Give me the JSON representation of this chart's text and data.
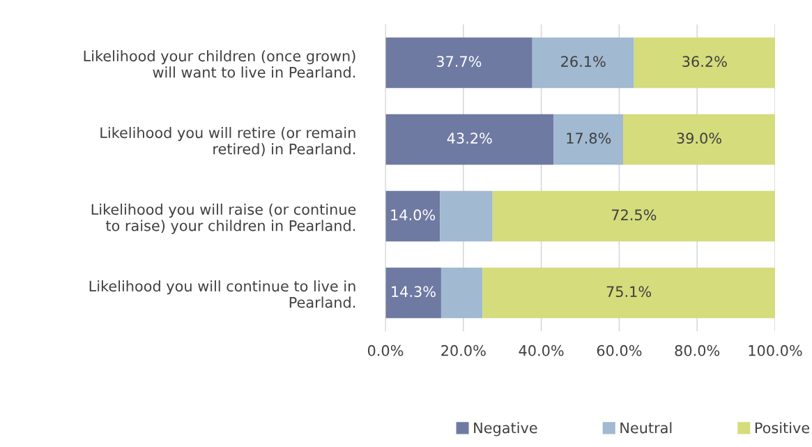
{
  "chart_data": {
    "type": "bar",
    "orientation": "horizontal",
    "stacked": true,
    "categories": [
      "Likelihood your children (once grown)\nwill want to live in Pearland.",
      "Likelihood you will retire (or remain\nretired) in Pearland.",
      "Likelihood you will raise (or continue\nto raise) your children in Pearland.",
      "Likelihood you will continue to live in\nPearland."
    ],
    "series": [
      {
        "name": "Negative",
        "color": "#6f7aa3",
        "values": [
          37.7,
          43.2,
          14.0,
          14.3
        ],
        "value_labels": [
          "37.7%",
          "43.2%",
          "14.0%",
          "14.3%"
        ]
      },
      {
        "name": "Neutral",
        "color": "#a1b9d1",
        "values": [
          26.1,
          17.8,
          13.5,
          10.6
        ],
        "value_labels": [
          "26.1%",
          "17.8%",
          null,
          null
        ]
      },
      {
        "name": "Positive",
        "color": "#d4dc7c",
        "values": [
          36.2,
          39.0,
          72.5,
          75.1
        ],
        "value_labels": [
          "36.2%",
          "39.0%",
          "72.5%",
          "75.1%"
        ]
      }
    ],
    "xlim": [
      0,
      100
    ],
    "xticks": [
      {
        "value": 0,
        "label": "0.0%"
      },
      {
        "value": 20,
        "label": "20.0%"
      },
      {
        "value": 40,
        "label": "40.0%"
      },
      {
        "value": 60,
        "label": "60.0%"
      },
      {
        "value": 80,
        "label": "80.0%"
      },
      {
        "value": 100,
        "label": "100.0%"
      }
    ],
    "grid": "x",
    "legend": "bottom"
  }
}
